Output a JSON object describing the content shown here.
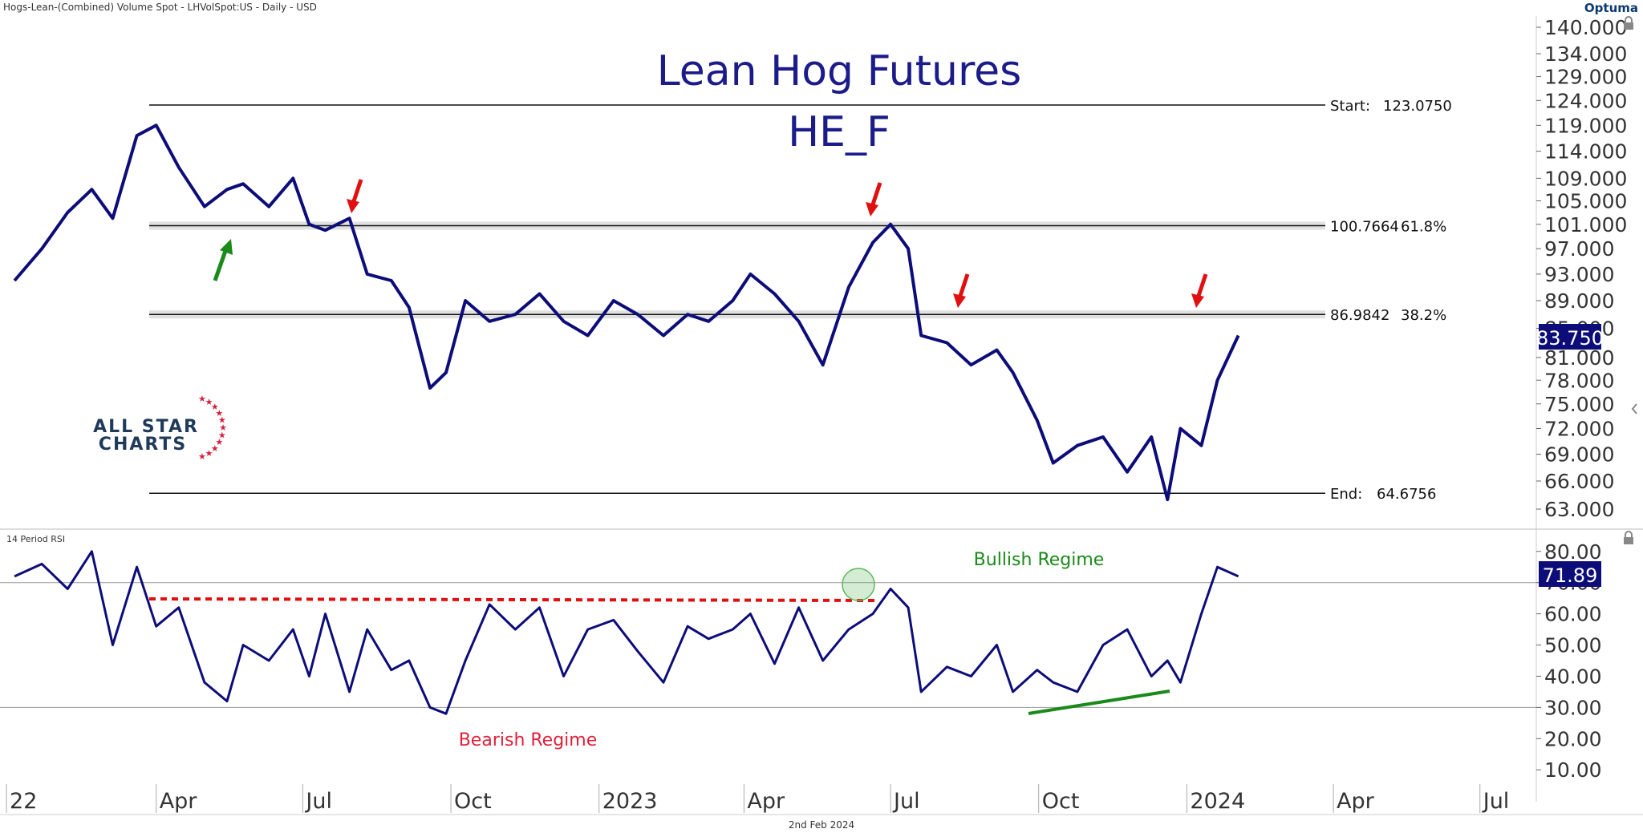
{
  "header": {
    "symbol_line": "Hogs-Lean-(Combined) Volume Spot - LHVolSpot:US - Daily - USD",
    "brand": "Optuma"
  },
  "footer": {
    "date": "2nd Feb 2024"
  },
  "logo": {
    "line1": "ALL STAR",
    "line2": "CHARTS"
  },
  "chart_data": [
    {
      "type": "line",
      "title": "Lean Hog Futures",
      "subtitle": "HE_F",
      "x_ticks": [
        "22",
        "Apr",
        "Jul",
        "Oct",
        "2023",
        "Apr",
        "Jul",
        "Oct",
        "2024",
        "Apr",
        "Jul"
      ],
      "y_ticks": [
        "140.000",
        "134.000",
        "129.000",
        "124.000",
        "119.000",
        "114.000",
        "109.000",
        "105.000",
        "101.000",
        "97.000",
        "93.000",
        "89.000",
        "85.000",
        "81.000",
        "78.000",
        "75.000",
        "72.000",
        "69.000",
        "66.000",
        "63.000"
      ],
      "last_value": "83.750",
      "fib_levels": [
        {
          "label": "Start:",
          "value": "123.0750",
          "level": 123.075
        },
        {
          "label": "100.7664",
          "value": "61.8%",
          "level": 100.7664
        },
        {
          "label": "86.9842",
          "value": "38.2%",
          "level": 86.9842
        },
        {
          "label": "End:",
          "value": "64.6756",
          "level": 64.6756
        }
      ],
      "series": [
        {
          "x": [
            "2022-01-03",
            "2022-01-20",
            "2022-02-05",
            "2022-02-20",
            "2022-03-05",
            "2022-03-20",
            "2022-04-01",
            "2022-04-15",
            "2022-05-01",
            "2022-05-15",
            "2022-05-25",
            "2022-06-10",
            "2022-06-25",
            "2022-07-05",
            "2022-07-15",
            "2022-07-30",
            "2022-08-10",
            "2022-08-25",
            "2022-09-05",
            "2022-09-18",
            "2022-09-28",
            "2022-10-10",
            "2022-10-25",
            "2022-11-10",
            "2022-11-25",
            "2022-12-10",
            "2022-12-25",
            "2023-01-10",
            "2023-01-25",
            "2023-02-10",
            "2023-02-25",
            "2023-03-10",
            "2023-03-25",
            "2023-04-05",
            "2023-04-20",
            "2023-05-05",
            "2023-05-20",
            "2023-06-05",
            "2023-06-20",
            "2023-07-01",
            "2023-07-12",
            "2023-07-20",
            "2023-08-05",
            "2023-08-20",
            "2023-09-05",
            "2023-09-15",
            "2023-09-30",
            "2023-10-10",
            "2023-10-25",
            "2023-11-10",
            "2023-11-25",
            "2023-12-10",
            "2023-12-20",
            "2023-12-28",
            "2024-01-10",
            "2024-01-20",
            "2024-02-02"
          ],
          "values": [
            92,
            97,
            103,
            107,
            102,
            117,
            119,
            111,
            104,
            107,
            108,
            104,
            109,
            101,
            100,
            102,
            93,
            92,
            88,
            77,
            79,
            89,
            86,
            87,
            90,
            86,
            84,
            89,
            87,
            84,
            87,
            86,
            89,
            93,
            90,
            86,
            80,
            91,
            98,
            101,
            97,
            84,
            83,
            80,
            82,
            79,
            73,
            68,
            70,
            71,
            67,
            71,
            64,
            72,
            70,
            78,
            84
          ]
        }
      ]
    },
    {
      "type": "line",
      "title": "14 Period RSI",
      "y_ticks": [
        "80.00",
        "70.00",
        "60.00",
        "50.00",
        "40.00",
        "30.00",
        "20.00",
        "10.00"
      ],
      "last_value": "71.89",
      "annotations": [
        "Bullish Regime",
        "Bearish Regime"
      ],
      "bands": [
        70,
        30
      ],
      "series": [
        {
          "x": [
            "2022-01-03",
            "2022-01-20",
            "2022-02-05",
            "2022-02-20",
            "2022-03-05",
            "2022-03-20",
            "2022-04-01",
            "2022-04-15",
            "2022-05-01",
            "2022-05-15",
            "2022-05-25",
            "2022-06-10",
            "2022-06-25",
            "2022-07-05",
            "2022-07-15",
            "2022-07-30",
            "2022-08-10",
            "2022-08-25",
            "2022-09-05",
            "2022-09-18",
            "2022-09-28",
            "2022-10-10",
            "2022-10-25",
            "2022-11-10",
            "2022-11-25",
            "2022-12-10",
            "2022-12-25",
            "2023-01-10",
            "2023-01-25",
            "2023-02-10",
            "2023-02-25",
            "2023-03-10",
            "2023-03-25",
            "2023-04-05",
            "2023-04-20",
            "2023-05-05",
            "2023-05-20",
            "2023-06-05",
            "2023-06-20",
            "2023-07-01",
            "2023-07-12",
            "2023-07-20",
            "2023-08-05",
            "2023-08-20",
            "2023-09-05",
            "2023-09-15",
            "2023-09-30",
            "2023-10-10",
            "2023-10-25",
            "2023-11-10",
            "2023-11-25",
            "2023-12-10",
            "2023-12-20",
            "2023-12-28",
            "2024-01-10",
            "2024-01-20",
            "2024-02-02"
          ],
          "values": [
            72,
            76,
            68,
            80,
            50,
            75,
            56,
            62,
            38,
            32,
            50,
            45,
            55,
            40,
            60,
            35,
            55,
            42,
            45,
            30,
            28,
            45,
            63,
            55,
            62,
            40,
            55,
            58,
            48,
            38,
            56,
            52,
            55,
            60,
            44,
            62,
            45,
            55,
            60,
            68,
            62,
            35,
            43,
            40,
            50,
            35,
            42,
            38,
            35,
            50,
            55,
            40,
            45,
            38,
            60,
            75,
            72
          ]
        }
      ]
    }
  ]
}
